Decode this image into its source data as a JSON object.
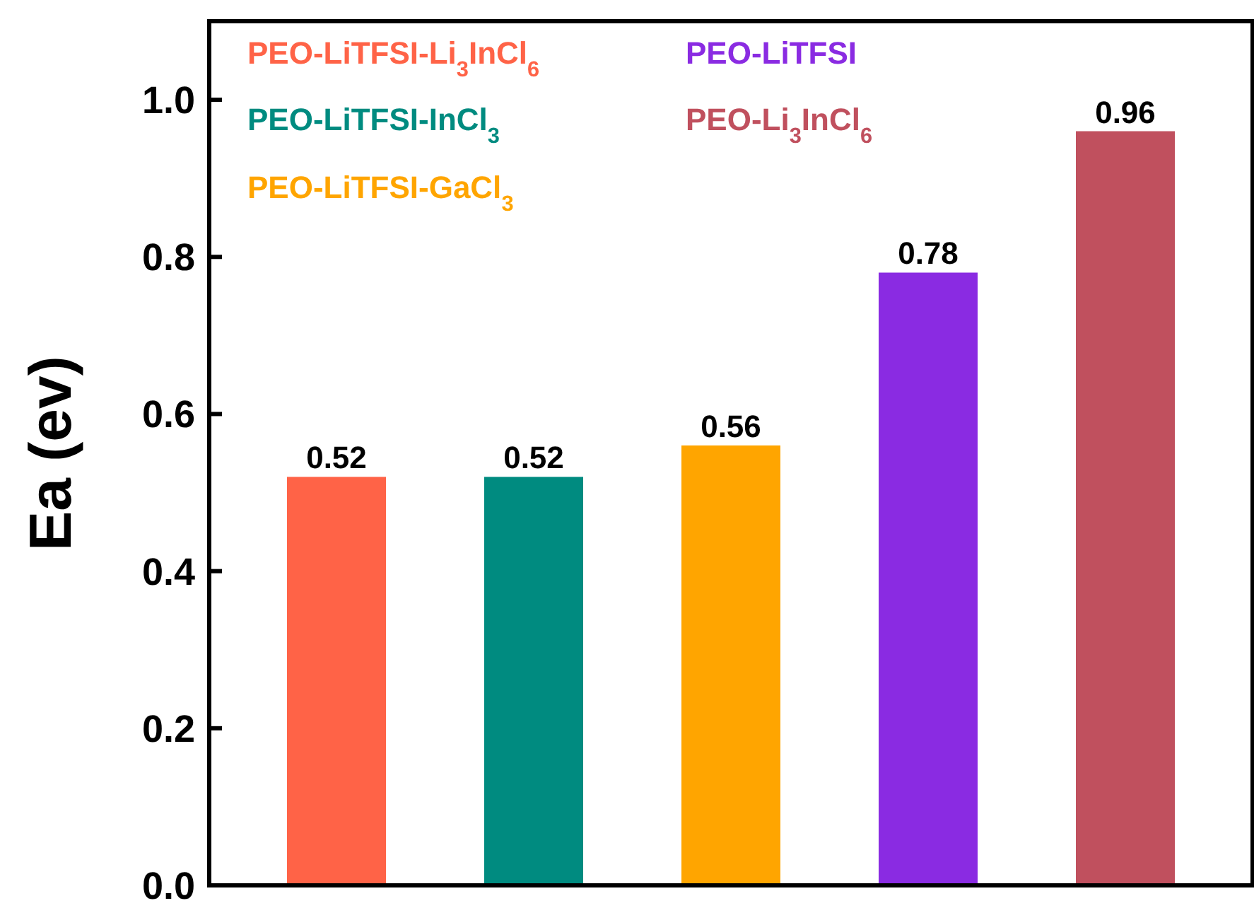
{
  "chart_data": {
    "type": "bar",
    "ylabel": "Ea (ev)",
    "categories": [
      null,
      null,
      null,
      null,
      null
    ],
    "values": [
      0.52,
      0.52,
      0.56,
      0.78,
      0.96
    ],
    "colors": [
      "#ff6347",
      "#008b80",
      "#ffa500",
      "#8a2be2",
      "#c0505e"
    ],
    "annotations": [
      "PEO-LiTFSI-Li$_{3}$InCl$_{6}$",
      "PEO-LiTFSI-InCl$_{3}$",
      "PEO-LiTFSI-GaCl$_{3}$",
      "PEO-LiTFSI",
      "PEO-Li$_{3}$InCl$_{6}$"
    ],
    "ylim": [
      0,
      1.1
    ],
    "yticks": [
      {
        "value": 0,
        "label": "0.0"
      },
      0.2,
      0.4,
      0.6,
      0.8,
      {
        "value": 1,
        "label": "1.0"
      }
    ],
    "data_labels": true
  }
}
